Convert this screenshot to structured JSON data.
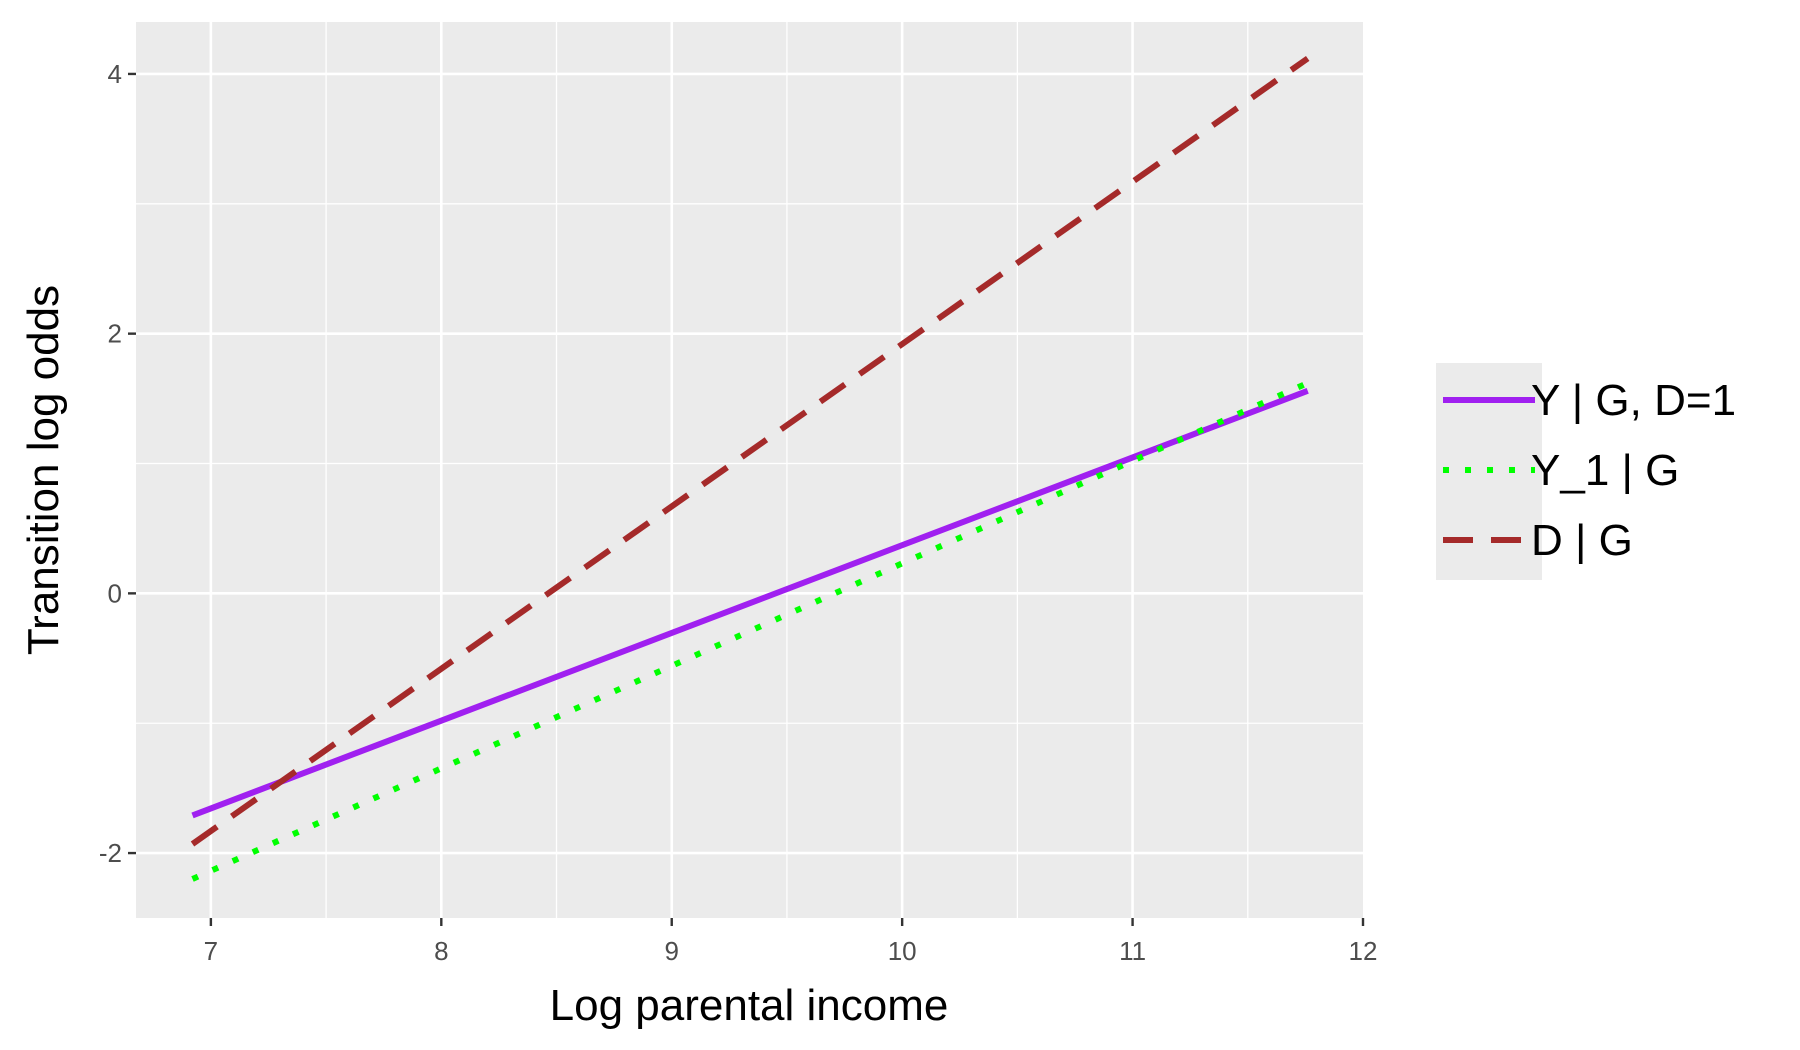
{
  "chart_data": {
    "type": "line",
    "xlabel": "Log parental income",
    "ylabel": "Transition log odds",
    "xlim": [
      6.675,
      12.0
    ],
    "ylim": [
      -2.5,
      4.4
    ],
    "x_ticks": [
      7,
      8,
      9,
      10,
      11,
      12
    ],
    "x_tick_labels": [
      "7",
      "8",
      "9",
      "10",
      "11",
      "12"
    ],
    "y_ticks": [
      -2,
      0,
      2,
      4
    ],
    "y_tick_labels": [
      "-2",
      "0",
      "2",
      "4"
    ],
    "grid": true,
    "legend_position": "right",
    "panel_background": "#ebebeb",
    "series": [
      {
        "name": "Y | G, D=1",
        "color": "#a020f0",
        "linestyle": "solid",
        "x": [
          6.92,
          11.76
        ],
        "y": [
          -1.71,
          1.56
        ]
      },
      {
        "name": "Y_1 | G",
        "color": "#00ff00",
        "linestyle": "dotted",
        "x": [
          6.92,
          11.76
        ],
        "y": [
          -2.2,
          1.62
        ]
      },
      {
        "name": "D | G",
        "color": "#a52a2a",
        "linestyle": "dashed",
        "x": [
          6.92,
          11.76
        ],
        "y": [
          -1.93,
          4.12
        ]
      }
    ]
  }
}
